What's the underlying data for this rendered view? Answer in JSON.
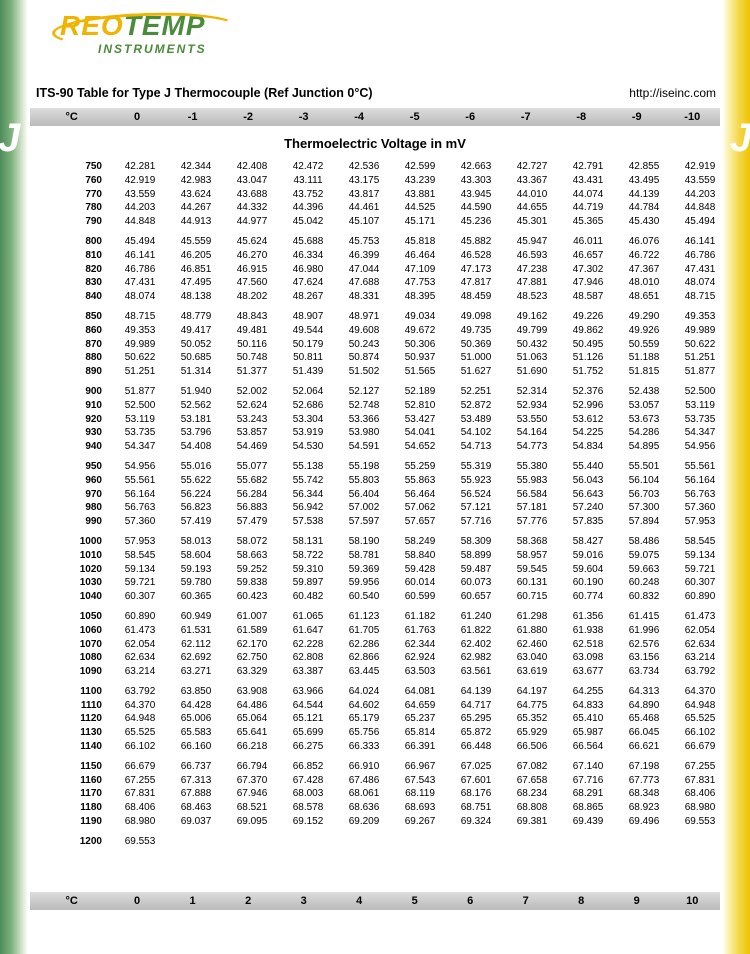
{
  "logo": {
    "part1": "REO",
    "part2": "TEMP",
    "sub": "INSTRUMENTS"
  },
  "title": "ITS-90 Table for Type J Thermocouple (Ref Junction 0°C)",
  "url": "http://iseinc.com",
  "side_letter": "J",
  "subtitle": "Thermoelectric Voltage in mV",
  "header": {
    "first": "°C",
    "cols": [
      "0",
      "-1",
      "-2",
      "-3",
      "-4",
      "-5",
      "-6",
      "-7",
      "-8",
      "-9",
      "-10"
    ]
  },
  "footer": {
    "first": "°C",
    "cols": [
      "0",
      "1",
      "2",
      "3",
      "4",
      "5",
      "6",
      "7",
      "8",
      "9",
      "10"
    ]
  },
  "colors": {
    "left_grad": [
      "#4e8c5a",
      "#d8e6d0"
    ],
    "right_grad": [
      "#f0c400",
      "#fcf3b8"
    ],
    "band": "#c8c8c8"
  },
  "groups": [
    [
      {
        "t": "750",
        "v": [
          "42.281",
          "42.344",
          "42.408",
          "42.472",
          "42.536",
          "42.599",
          "42.663",
          "42.727",
          "42.791",
          "42.855",
          "42.919"
        ]
      },
      {
        "t": "760",
        "v": [
          "42.919",
          "42.983",
          "43.047",
          "43.111",
          "43.175",
          "43.239",
          "43.303",
          "43.367",
          "43.431",
          "43.495",
          "43.559"
        ]
      },
      {
        "t": "770",
        "v": [
          "43.559",
          "43.624",
          "43.688",
          "43.752",
          "43.817",
          "43.881",
          "43.945",
          "44.010",
          "44.074",
          "44.139",
          "44.203"
        ]
      },
      {
        "t": "780",
        "v": [
          "44.203",
          "44.267",
          "44.332",
          "44.396",
          "44.461",
          "44.525",
          "44.590",
          "44.655",
          "44.719",
          "44.784",
          "44.848"
        ]
      },
      {
        "t": "790",
        "v": [
          "44.848",
          "44.913",
          "44.977",
          "45.042",
          "45.107",
          "45.171",
          "45.236",
          "45.301",
          "45.365",
          "45.430",
          "45.494"
        ]
      }
    ],
    [
      {
        "t": "800",
        "v": [
          "45.494",
          "45.559",
          "45.624",
          "45.688",
          "45.753",
          "45.818",
          "45.882",
          "45.947",
          "46.011",
          "46.076",
          "46.141"
        ]
      },
      {
        "t": "810",
        "v": [
          "46.141",
          "46.205",
          "46.270",
          "46.334",
          "46.399",
          "46.464",
          "46.528",
          "46.593",
          "46.657",
          "46.722",
          "46.786"
        ]
      },
      {
        "t": "820",
        "v": [
          "46.786",
          "46.851",
          "46.915",
          "46.980",
          "47.044",
          "47.109",
          "47.173",
          "47.238",
          "47.302",
          "47.367",
          "47.431"
        ]
      },
      {
        "t": "830",
        "v": [
          "47.431",
          "47.495",
          "47.560",
          "47.624",
          "47.688",
          "47.753",
          "47.817",
          "47.881",
          "47.946",
          "48.010",
          "48.074"
        ]
      },
      {
        "t": "840",
        "v": [
          "48.074",
          "48.138",
          "48.202",
          "48.267",
          "48.331",
          "48.395",
          "48.459",
          "48.523",
          "48.587",
          "48.651",
          "48.715"
        ]
      }
    ],
    [
      {
        "t": "850",
        "v": [
          "48.715",
          "48.779",
          "48.843",
          "48.907",
          "48.971",
          "49.034",
          "49.098",
          "49.162",
          "49.226",
          "49.290",
          "49.353"
        ]
      },
      {
        "t": "860",
        "v": [
          "49.353",
          "49.417",
          "49.481",
          "49.544",
          "49.608",
          "49.672",
          "49.735",
          "49.799",
          "49.862",
          "49.926",
          "49.989"
        ]
      },
      {
        "t": "870",
        "v": [
          "49.989",
          "50.052",
          "50.116",
          "50.179",
          "50.243",
          "50.306",
          "50.369",
          "50.432",
          "50.495",
          "50.559",
          "50.622"
        ]
      },
      {
        "t": "880",
        "v": [
          "50.622",
          "50.685",
          "50.748",
          "50.811",
          "50.874",
          "50.937",
          "51.000",
          "51.063",
          "51.126",
          "51.188",
          "51.251"
        ]
      },
      {
        "t": "890",
        "v": [
          "51.251",
          "51.314",
          "51.377",
          "51.439",
          "51.502",
          "51.565",
          "51.627",
          "51.690",
          "51.752",
          "51.815",
          "51.877"
        ]
      }
    ],
    [
      {
        "t": "900",
        "v": [
          "51.877",
          "51.940",
          "52.002",
          "52.064",
          "52.127",
          "52.189",
          "52.251",
          "52.314",
          "52.376",
          "52.438",
          "52.500"
        ]
      },
      {
        "t": "910",
        "v": [
          "52.500",
          "52.562",
          "52.624",
          "52.686",
          "52.748",
          "52.810",
          "52.872",
          "52.934",
          "52.996",
          "53.057",
          "53.119"
        ]
      },
      {
        "t": "920",
        "v": [
          "53.119",
          "53.181",
          "53.243",
          "53.304",
          "53.366",
          "53.427",
          "53.489",
          "53.550",
          "53.612",
          "53.673",
          "53.735"
        ]
      },
      {
        "t": "930",
        "v": [
          "53.735",
          "53.796",
          "53.857",
          "53.919",
          "53.980",
          "54.041",
          "54.102",
          "54.164",
          "54.225",
          "54.286",
          "54.347"
        ]
      },
      {
        "t": "940",
        "v": [
          "54.347",
          "54.408",
          "54.469",
          "54.530",
          "54.591",
          "54.652",
          "54.713",
          "54.773",
          "54.834",
          "54.895",
          "54.956"
        ]
      }
    ],
    [
      {
        "t": "950",
        "v": [
          "54.956",
          "55.016",
          "55.077",
          "55.138",
          "55.198",
          "55.259",
          "55.319",
          "55.380",
          "55.440",
          "55.501",
          "55.561"
        ]
      },
      {
        "t": "960",
        "v": [
          "55.561",
          "55.622",
          "55.682",
          "55.742",
          "55.803",
          "55.863",
          "55.923",
          "55.983",
          "56.043",
          "56.104",
          "56.164"
        ]
      },
      {
        "t": "970",
        "v": [
          "56.164",
          "56.224",
          "56.284",
          "56.344",
          "56.404",
          "56.464",
          "56.524",
          "56.584",
          "56.643",
          "56.703",
          "56.763"
        ]
      },
      {
        "t": "980",
        "v": [
          "56.763",
          "56.823",
          "56.883",
          "56.942",
          "57.002",
          "57.062",
          "57.121",
          "57.181",
          "57.240",
          "57.300",
          "57.360"
        ]
      },
      {
        "t": "990",
        "v": [
          "57.360",
          "57.419",
          "57.479",
          "57.538",
          "57.597",
          "57.657",
          "57.716",
          "57.776",
          "57.835",
          "57.894",
          "57.953"
        ]
      }
    ],
    [
      {
        "t": "1000",
        "v": [
          "57.953",
          "58.013",
          "58.072",
          "58.131",
          "58.190",
          "58.249",
          "58.309",
          "58.368",
          "58.427",
          "58.486",
          "58.545"
        ]
      },
      {
        "t": "1010",
        "v": [
          "58.545",
          "58.604",
          "58.663",
          "58.722",
          "58.781",
          "58.840",
          "58.899",
          "58.957",
          "59.016",
          "59.075",
          "59.134"
        ]
      },
      {
        "t": "1020",
        "v": [
          "59.134",
          "59.193",
          "59.252",
          "59.310",
          "59.369",
          "59.428",
          "59.487",
          "59.545",
          "59.604",
          "59.663",
          "59.721"
        ]
      },
      {
        "t": "1030",
        "v": [
          "59.721",
          "59.780",
          "59.838",
          "59.897",
          "59.956",
          "60.014",
          "60.073",
          "60.131",
          "60.190",
          "60.248",
          "60.307"
        ]
      },
      {
        "t": "1040",
        "v": [
          "60.307",
          "60.365",
          "60.423",
          "60.482",
          "60.540",
          "60.599",
          "60.657",
          "60.715",
          "60.774",
          "60.832",
          "60.890"
        ]
      }
    ],
    [
      {
        "t": "1050",
        "v": [
          "60.890",
          "60.949",
          "61.007",
          "61.065",
          "61.123",
          "61.182",
          "61.240",
          "61.298",
          "61.356",
          "61.415",
          "61.473"
        ]
      },
      {
        "t": "1060",
        "v": [
          "61.473",
          "61.531",
          "61.589",
          "61.647",
          "61.705",
          "61.763",
          "61.822",
          "61.880",
          "61.938",
          "61.996",
          "62.054"
        ]
      },
      {
        "t": "1070",
        "v": [
          "62.054",
          "62.112",
          "62.170",
          "62.228",
          "62.286",
          "62.344",
          "62.402",
          "62.460",
          "62.518",
          "62.576",
          "62.634"
        ]
      },
      {
        "t": "1080",
        "v": [
          "62.634",
          "62.692",
          "62.750",
          "62.808",
          "62.866",
          "62.924",
          "62.982",
          "63.040",
          "63.098",
          "63.156",
          "63.214"
        ]
      },
      {
        "t": "1090",
        "v": [
          "63.214",
          "63.271",
          "63.329",
          "63.387",
          "63.445",
          "63.503",
          "63.561",
          "63.619",
          "63.677",
          "63.734",
          "63.792"
        ]
      }
    ],
    [
      {
        "t": "1100",
        "v": [
          "63.792",
          "63.850",
          "63.908",
          "63.966",
          "64.024",
          "64.081",
          "64.139",
          "64.197",
          "64.255",
          "64.313",
          "64.370"
        ]
      },
      {
        "t": "1110",
        "v": [
          "64.370",
          "64.428",
          "64.486",
          "64.544",
          "64.602",
          "64.659",
          "64.717",
          "64.775",
          "64.833",
          "64.890",
          "64.948"
        ]
      },
      {
        "t": "1120",
        "v": [
          "64.948",
          "65.006",
          "65.064",
          "65.121",
          "65.179",
          "65.237",
          "65.295",
          "65.352",
          "65.410",
          "65.468",
          "65.525"
        ]
      },
      {
        "t": "1130",
        "v": [
          "65.525",
          "65.583",
          "65.641",
          "65.699",
          "65.756",
          "65.814",
          "65.872",
          "65.929",
          "65.987",
          "66.045",
          "66.102"
        ]
      },
      {
        "t": "1140",
        "v": [
          "66.102",
          "66.160",
          "66.218",
          "66.275",
          "66.333",
          "66.391",
          "66.448",
          "66.506",
          "66.564",
          "66.621",
          "66.679"
        ]
      }
    ],
    [
      {
        "t": "1150",
        "v": [
          "66.679",
          "66.737",
          "66.794",
          "66.852",
          "66.910",
          "66.967",
          "67.025",
          "67.082",
          "67.140",
          "67.198",
          "67.255"
        ]
      },
      {
        "t": "1160",
        "v": [
          "67.255",
          "67.313",
          "67.370",
          "67.428",
          "67.486",
          "67.543",
          "67.601",
          "67.658",
          "67.716",
          "67.773",
          "67.831"
        ]
      },
      {
        "t": "1170",
        "v": [
          "67.831",
          "67.888",
          "67.946",
          "68.003",
          "68.061",
          "68.119",
          "68.176",
          "68.234",
          "68.291",
          "68.348",
          "68.406"
        ]
      },
      {
        "t": "1180",
        "v": [
          "68.406",
          "68.463",
          "68.521",
          "68.578",
          "68.636",
          "68.693",
          "68.751",
          "68.808",
          "68.865",
          "68.923",
          "68.980"
        ]
      },
      {
        "t": "1190",
        "v": [
          "68.980",
          "69.037",
          "69.095",
          "69.152",
          "69.209",
          "69.267",
          "69.324",
          "69.381",
          "69.439",
          "69.496",
          "69.553"
        ]
      }
    ],
    [
      {
        "t": "1200",
        "v": [
          "69.553"
        ]
      }
    ]
  ]
}
